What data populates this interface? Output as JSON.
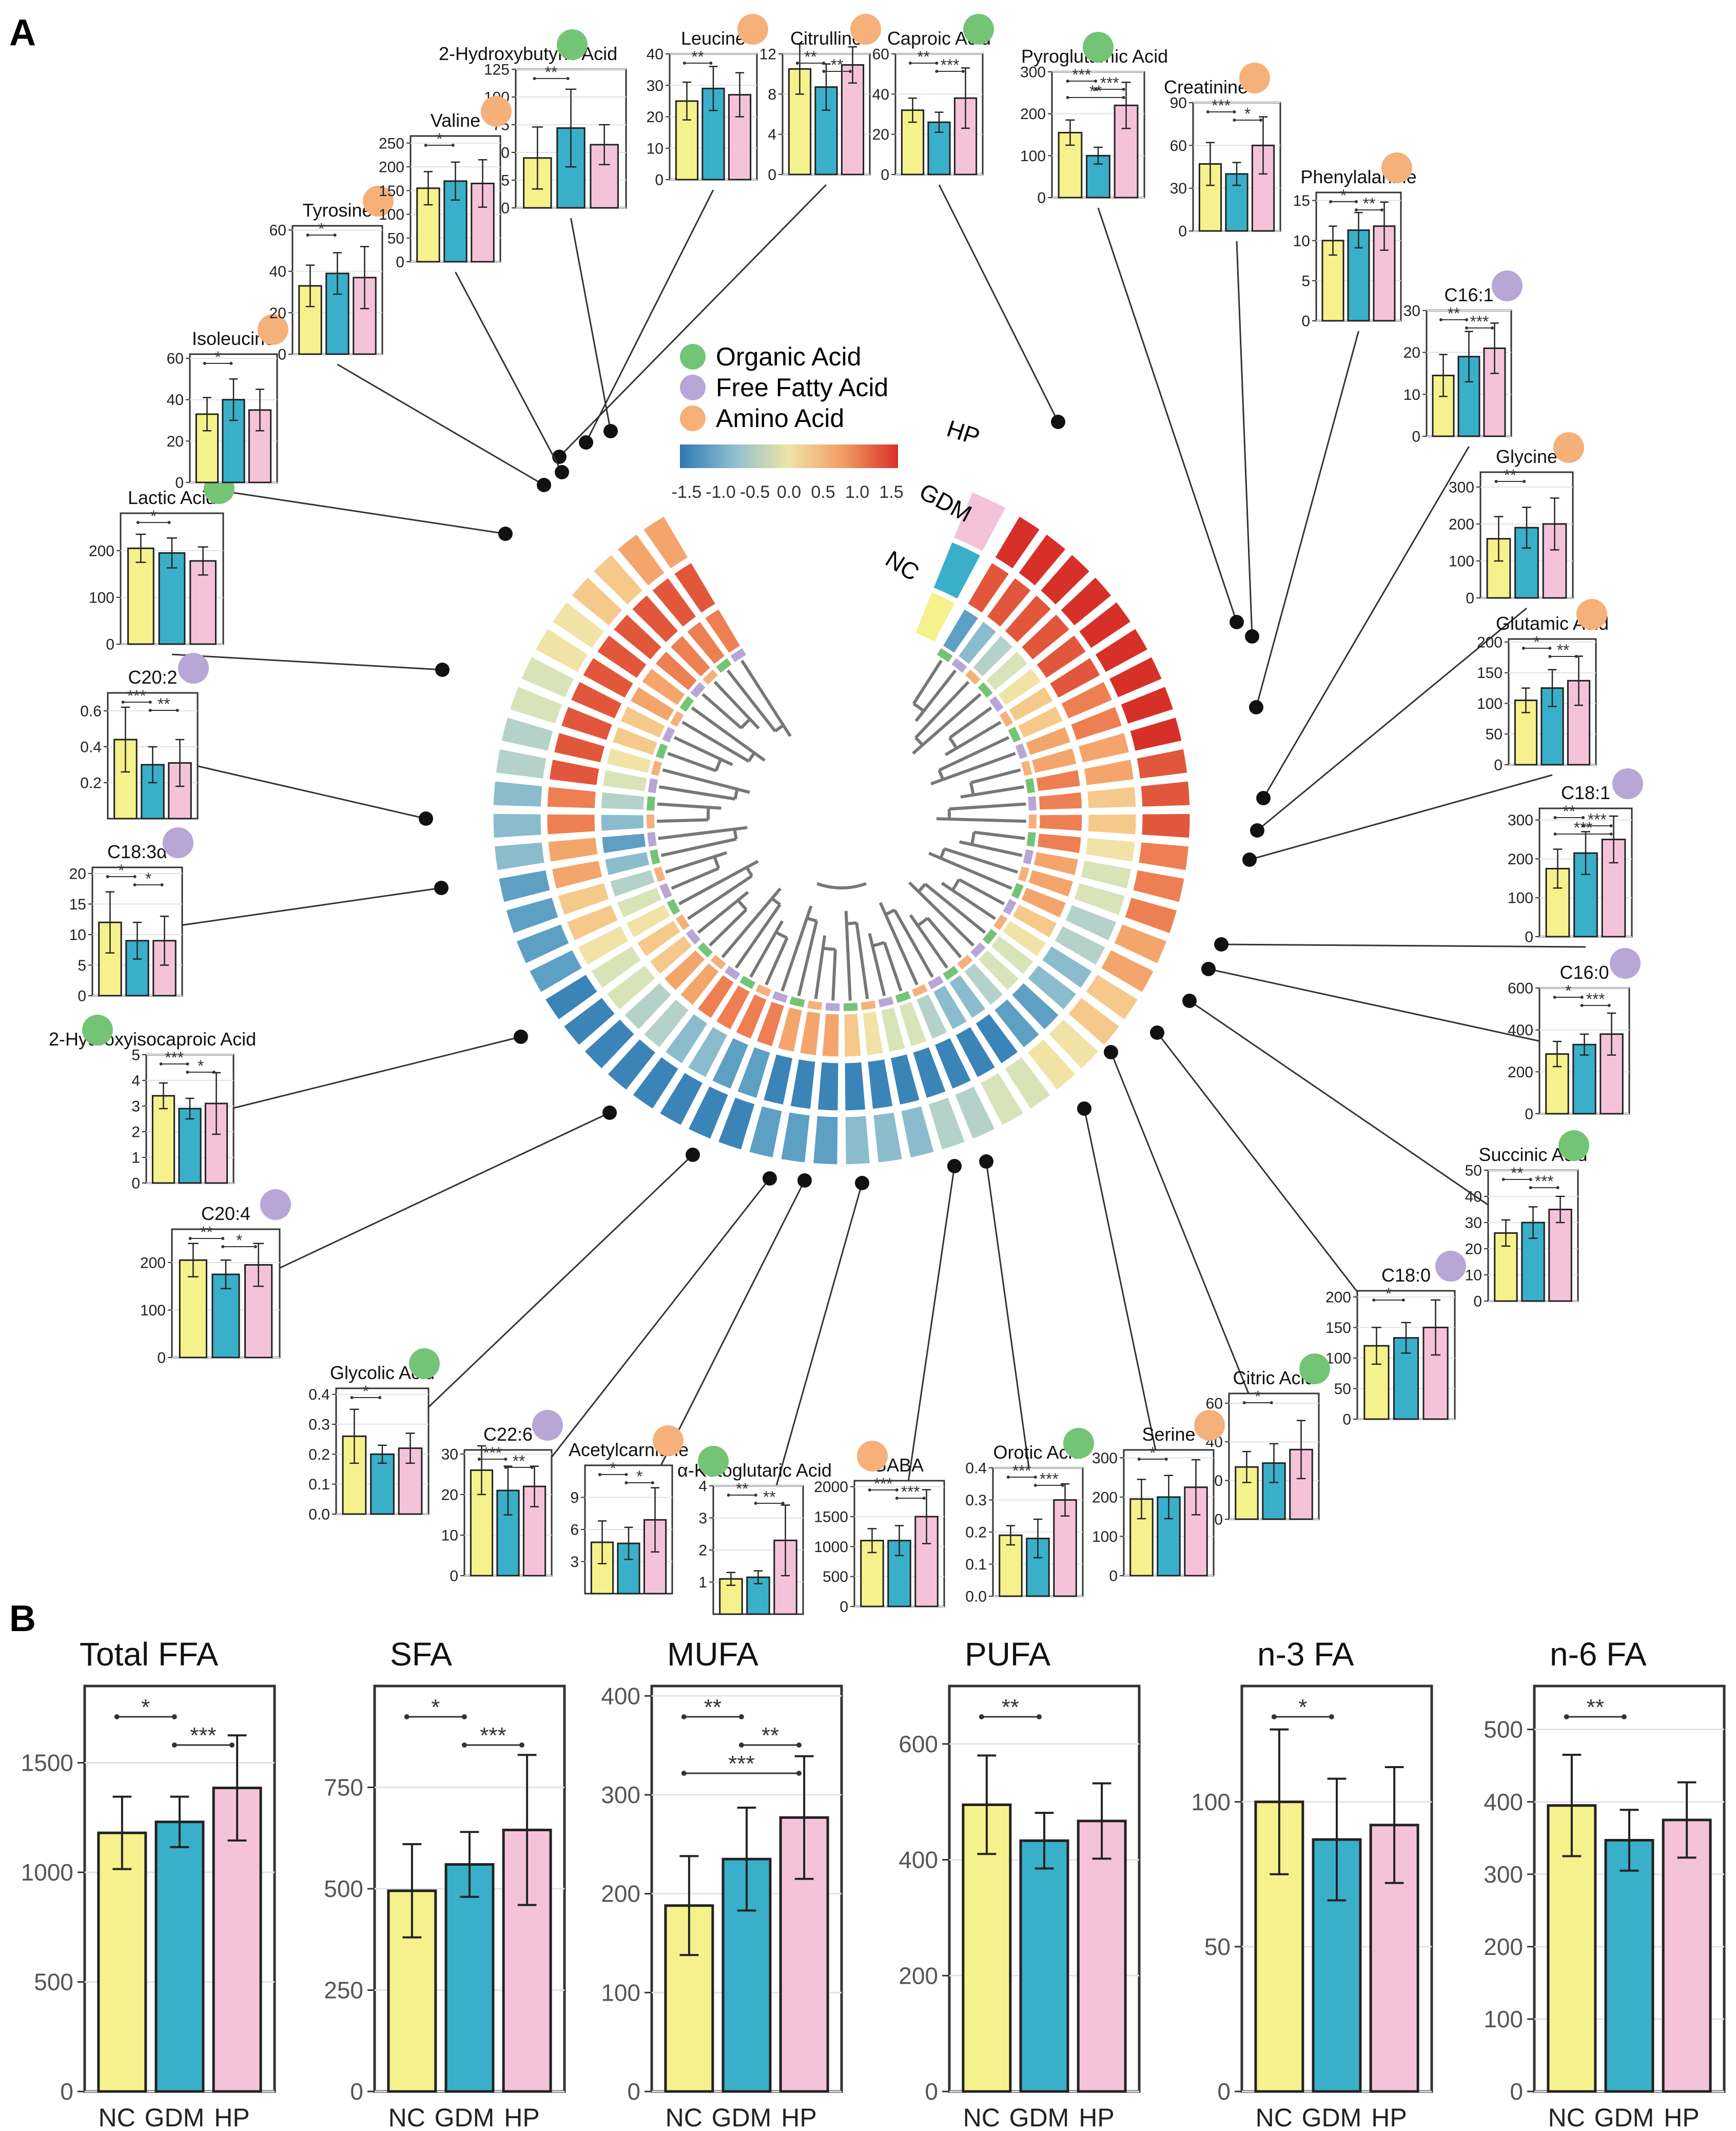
{
  "panel_labels": {
    "a": "A",
    "b": "B"
  },
  "groups": [
    "NC",
    "GDM",
    "HP"
  ],
  "legend": [
    {
      "name": "Organic Acid",
      "color": "#74c476"
    },
    {
      "name": "Free Fatty Acid",
      "color": "#b7a6d6"
    },
    {
      "name": "Amino Acid",
      "color": "#f6b07a"
    }
  ],
  "colorbar": {
    "ticks": [
      "-1.5",
      "-1.0",
      "-0.5",
      "0.0",
      "0.5",
      "1.0",
      "1.5"
    ]
  },
  "ring_labels": {
    "hp": "HP",
    "gdm": "GDM",
    "nc": "NC"
  },
  "colors": {
    "NC": "#f5f18c",
    "GDM": "#3aafc9",
    "HP": "#f5c3d9",
    "organic": "#74c476",
    "ffa": "#b7a6d6",
    "amino": "#f6b07a"
  },
  "chart_data": [
    {
      "type": "bar",
      "title": "2-Hydroxybutyric Acid",
      "class": "organic",
      "categories": [
        "NC",
        "GDM",
        "HP"
      ],
      "values": [
        45,
        72,
        57
      ],
      "errors": [
        28,
        35,
        18
      ],
      "ylim": [
        0,
        125
      ],
      "yticks": [
        "0",
        "25",
        "50",
        "75",
        "100",
        "125"
      ],
      "sig": [
        "**"
      ]
    },
    {
      "type": "bar",
      "title": "Leucine",
      "class": "amino",
      "categories": [
        "NC",
        "GDM",
        "HP"
      ],
      "values": [
        25,
        29,
        27
      ],
      "errors": [
        6,
        7,
        7
      ],
      "ylim": [
        0,
        40
      ],
      "yticks": [
        "0",
        "10",
        "20",
        "30",
        "40"
      ],
      "sig": [
        "**"
      ]
    },
    {
      "type": "bar",
      "title": "Citrulline",
      "class": "amino",
      "categories": [
        "NC",
        "GDM",
        "HP"
      ],
      "values": [
        10.5,
        8.7,
        10.9
      ],
      "errors": [
        2.5,
        2.3,
        1.8
      ],
      "ylim": [
        0,
        12
      ],
      "yticks": [
        "0",
        "4",
        "8",
        "12"
      ],
      "sig": [
        "**",
        "**"
      ]
    },
    {
      "type": "bar",
      "title": "Caproic Acid",
      "class": "organic",
      "categories": [
        "NC",
        "GDM",
        "HP"
      ],
      "values": [
        32,
        26,
        38
      ],
      "errors": [
        6,
        5,
        15
      ],
      "ylim": [
        0,
        60
      ],
      "yticks": [
        "0",
        "20",
        "40",
        "60"
      ],
      "sig": [
        "**",
        "***"
      ]
    },
    {
      "type": "bar",
      "title": "Pyroglutamic Acid",
      "class": "organic",
      "categories": [
        "NC",
        "GDM",
        "HP"
      ],
      "values": [
        155,
        100,
        220
      ],
      "errors": [
        30,
        20,
        55
      ],
      "ylim": [
        0,
        300
      ],
      "yticks": [
        "0",
        "100",
        "200",
        "300"
      ],
      "sig": [
        "***",
        "***",
        "**"
      ]
    },
    {
      "type": "bar",
      "title": "Creatinine",
      "class": "amino",
      "categories": [
        "NC",
        "GDM",
        "HP"
      ],
      "values": [
        47,
        40,
        60
      ],
      "errors": [
        15,
        8,
        20
      ],
      "ylim": [
        0,
        90
      ],
      "yticks": [
        "0",
        "30",
        "60",
        "90"
      ],
      "sig": [
        "***",
        "*"
      ]
    },
    {
      "type": "bar",
      "title": "Phenylalanine",
      "class": "amino",
      "categories": [
        "NC",
        "GDM",
        "HP"
      ],
      "values": [
        10,
        11.3,
        11.8
      ],
      "errors": [
        1.8,
        2.2,
        3
      ],
      "ylim": [
        0,
        16
      ],
      "yticks": [
        "0",
        "5",
        "10",
        "15"
      ],
      "sig": [
        "*",
        "**"
      ]
    },
    {
      "type": "bar",
      "title": "C16:1",
      "class": "ffa",
      "categories": [
        "NC",
        "GDM",
        "HP"
      ],
      "values": [
        14.5,
        19,
        21
      ],
      "errors": [
        5,
        6,
        6
      ],
      "ylim": [
        0,
        30
      ],
      "yticks": [
        "0",
        "10",
        "20",
        "30"
      ],
      "sig": [
        "**",
        "***"
      ]
    },
    {
      "type": "bar",
      "title": "Glycine",
      "class": "amino",
      "categories": [
        "NC",
        "GDM",
        "HP"
      ],
      "values": [
        160,
        190,
        200
      ],
      "errors": [
        60,
        55,
        70
      ],
      "ylim": [
        0,
        340
      ],
      "yticks": [
        "0",
        "100",
        "200",
        "300"
      ],
      "sig": [
        "**"
      ]
    },
    {
      "type": "bar",
      "title": "Glutamic Acid",
      "class": "amino",
      "categories": [
        "NC",
        "GDM",
        "HP"
      ],
      "values": [
        105,
        125,
        137
      ],
      "errors": [
        20,
        30,
        40
      ],
      "ylim": [
        0,
        205
      ],
      "yticks": [
        "0",
        "50",
        "100",
        "150",
        "200"
      ],
      "sig": [
        "*",
        "**"
      ]
    },
    {
      "type": "bar",
      "title": "C18:1",
      "class": "ffa",
      "categories": [
        "NC",
        "GDM",
        "HP"
      ],
      "values": [
        175,
        215,
        250
      ],
      "errors": [
        50,
        55,
        60
      ],
      "ylim": [
        0,
        330
      ],
      "yticks": [
        "0",
        "100",
        "200",
        "300"
      ],
      "sig": [
        "**",
        "***",
        "***"
      ]
    },
    {
      "type": "bar",
      "title": "C16:0",
      "class": "ffa",
      "categories": [
        "NC",
        "GDM",
        "HP"
      ],
      "values": [
        285,
        330,
        380
      ],
      "errors": [
        60,
        50,
        100
      ],
      "ylim": [
        0,
        600
      ],
      "yticks": [
        "0",
        "200",
        "400",
        "600"
      ],
      "sig": [
        "*",
        "***"
      ]
    },
    {
      "type": "bar",
      "title": "Succinic Acid",
      "class": "organic",
      "categories": [
        "NC",
        "GDM",
        "HP"
      ],
      "values": [
        26,
        30,
        35
      ],
      "errors": [
        5,
        6,
        5
      ],
      "ylim": [
        0,
        50
      ],
      "yticks": [
        "0",
        "10",
        "20",
        "30",
        "40",
        "50"
      ],
      "sig": [
        "**",
        "***"
      ]
    },
    {
      "type": "bar",
      "title": "C18:0",
      "class": "ffa",
      "categories": [
        "NC",
        "GDM",
        "HP"
      ],
      "values": [
        120,
        133,
        150
      ],
      "errors": [
        30,
        25,
        45
      ],
      "ylim": [
        0,
        210
      ],
      "yticks": [
        "0",
        "50",
        "100",
        "150",
        "200"
      ],
      "sig": [
        "*"
      ]
    },
    {
      "type": "bar",
      "title": "Citric Acid",
      "class": "organic",
      "categories": [
        "NC",
        "GDM",
        "HP"
      ],
      "values": [
        27,
        29,
        36
      ],
      "errors": [
        8,
        10,
        15
      ],
      "ylim": [
        0,
        65
      ],
      "yticks": [
        "0",
        "20",
        "40",
        "60"
      ],
      "sig": [
        "*"
      ]
    },
    {
      "type": "bar",
      "title": "Serine",
      "class": "amino",
      "categories": [
        "NC",
        "GDM",
        "HP"
      ],
      "values": [
        195,
        200,
        225
      ],
      "errors": [
        50,
        55,
        70
      ],
      "ylim": [
        0,
        320
      ],
      "yticks": [
        "0",
        "100",
        "200",
        "300"
      ],
      "sig": [
        "*"
      ]
    },
    {
      "type": "bar",
      "title": "Orotic Acid",
      "class": "organic",
      "categories": [
        "NC",
        "GDM",
        "HP"
      ],
      "values": [
        0.19,
        0.18,
        0.3
      ],
      "errors": [
        0.03,
        0.06,
        0.05
      ],
      "ylim": [
        0,
        0.4
      ],
      "yticks": [
        "0.0",
        "0.1",
        "0.2",
        "0.3",
        "0.4"
      ],
      "sig": [
        "***",
        "***"
      ]
    },
    {
      "type": "bar",
      "title": "GABA",
      "class": "amino",
      "categories": [
        "NC",
        "GDM",
        "HP"
      ],
      "values": [
        1100,
        1100,
        1500
      ],
      "errors": [
        200,
        250,
        450
      ],
      "ylim": [
        0,
        2100
      ],
      "yticks": [
        "0",
        "500",
        "1000",
        "1500",
        "2000"
      ],
      "sig": [
        "***",
        "***"
      ]
    },
    {
      "type": "bar",
      "title": "α-Ketoglutaric Acid",
      "class": "organic",
      "categories": [
        "NC",
        "GDM",
        "HP"
      ],
      "values": [
        1.1,
        1.15,
        2.3
      ],
      "errors": [
        0.2,
        0.2,
        1.1
      ],
      "ylim": [
        0,
        4
      ],
      "yticks": [
        "1",
        "2",
        "3",
        "4"
      ],
      "sig": [
        "**",
        "**"
      ]
    },
    {
      "type": "bar",
      "title": "Acetylcarnitine",
      "class": "amino",
      "categories": [
        "NC",
        "GDM",
        "HP"
      ],
      "values": [
        4.8,
        4.7,
        6.9
      ],
      "errors": [
        2,
        1.5,
        3
      ],
      "ylim": [
        0,
        12
      ],
      "yticks": [
        "3",
        "6",
        "9"
      ],
      "sig": [
        "*",
        "*"
      ]
    },
    {
      "type": "bar",
      "title": "C22:6",
      "class": "ffa",
      "categories": [
        "NC",
        "GDM",
        "HP"
      ],
      "values": [
        26,
        21,
        22
      ],
      "errors": [
        6,
        6,
        5
      ],
      "ylim": [
        0,
        31
      ],
      "yticks": [
        "0",
        "10",
        "20",
        "30"
      ],
      "sig": [
        "***",
        "**"
      ]
    },
    {
      "type": "bar",
      "title": "Glycolic Acid",
      "class": "organic",
      "categories": [
        "NC",
        "GDM",
        "HP"
      ],
      "values": [
        0.26,
        0.2,
        0.22
      ],
      "errors": [
        0.09,
        0.03,
        0.05
      ],
      "ylim": [
        0,
        0.42
      ],
      "yticks": [
        "0.0",
        "0.1",
        "0.2",
        "0.3",
        "0.4"
      ],
      "sig": [
        "*"
      ]
    },
    {
      "type": "bar",
      "title": "C20:4",
      "class": "ffa",
      "categories": [
        "NC",
        "GDM",
        "HP"
      ],
      "values": [
        205,
        175,
        195
      ],
      "errors": [
        35,
        30,
        45
      ],
      "ylim": [
        0,
        270
      ],
      "yticks": [
        "0",
        "100",
        "200"
      ],
      "sig": [
        "**",
        "*"
      ]
    },
    {
      "type": "bar",
      "title": "2-Hydroxyisocaproic Acid",
      "class": "organic",
      "categories": [
        "NC",
        "GDM",
        "HP"
      ],
      "values": [
        3.4,
        2.9,
        3.1
      ],
      "errors": [
        0.5,
        0.4,
        1.2
      ],
      "ylim": [
        0,
        5
      ],
      "yticks": [
        "0",
        "1",
        "2",
        "3",
        "4",
        "5"
      ],
      "sig": [
        "***",
        "*"
      ]
    },
    {
      "type": "bar",
      "title": "C18:3α",
      "class": "ffa",
      "categories": [
        "NC",
        "GDM",
        "HP"
      ],
      "values": [
        12,
        9,
        9
      ],
      "errors": [
        5,
        3,
        4
      ],
      "ylim": [
        0,
        21
      ],
      "yticks": [
        "0",
        "5",
        "10",
        "15",
        "20"
      ],
      "sig": [
        "*",
        "*"
      ]
    },
    {
      "type": "bar",
      "title": "C20:2",
      "class": "ffa",
      "categories": [
        "NC",
        "GDM",
        "HP"
      ],
      "values": [
        0.44,
        0.3,
        0.31
      ],
      "errors": [
        0.18,
        0.1,
        0.13
      ],
      "ylim": [
        0,
        0.7
      ],
      "yticks": [
        "0.2",
        "0.4",
        "0.6"
      ],
      "sig": [
        "***",
        "**"
      ]
    },
    {
      "type": "bar",
      "title": "Lactic Acid",
      "class": "organic",
      "categories": [
        "NC",
        "GDM",
        "HP"
      ],
      "values": [
        205,
        195,
        178
      ],
      "errors": [
        30,
        32,
        30
      ],
      "ylim": [
        0,
        280
      ],
      "yticks": [
        "0",
        "100",
        "200"
      ],
      "sig": [
        "*"
      ]
    },
    {
      "type": "bar",
      "title": "Isoleucine",
      "class": "amino",
      "categories": [
        "NC",
        "GDM",
        "HP"
      ],
      "values": [
        33,
        40,
        35
      ],
      "errors": [
        8,
        10,
        10
      ],
      "ylim": [
        0,
        62
      ],
      "yticks": [
        "0",
        "20",
        "40",
        "60"
      ],
      "sig": [
        "*"
      ]
    },
    {
      "type": "bar",
      "title": "Tyrosine",
      "class": "amino",
      "categories": [
        "NC",
        "GDM",
        "HP"
      ],
      "values": [
        33,
        39,
        37
      ],
      "errors": [
        10,
        10,
        15
      ],
      "ylim": [
        0,
        62
      ],
      "yticks": [
        "0",
        "20",
        "40",
        "60"
      ],
      "sig": [
        "*"
      ]
    },
    {
      "type": "bar",
      "title": "Valine",
      "class": "amino",
      "categories": [
        "NC",
        "GDM",
        "HP"
      ],
      "values": [
        155,
        170,
        165
      ],
      "errors": [
        35,
        40,
        50
      ],
      "ylim": [
        0,
        265
      ],
      "yticks": [
        "0",
        "50",
        "100",
        "150",
        "200",
        "250"
      ],
      "sig": [
        "*"
      ]
    },
    {
      "type": "bar",
      "title": "Total FFA",
      "categories": [
        "NC",
        "GDM",
        "HP"
      ],
      "values": [
        1180,
        1230,
        1385
      ],
      "errors": [
        165,
        115,
        240
      ],
      "ylim": [
        0,
        1850
      ],
      "yticks": [
        "0",
        "500",
        "1000",
        "1500"
      ],
      "sig": [
        "*",
        "***"
      ]
    },
    {
      "type": "bar",
      "title": "SFA",
      "categories": [
        "NC",
        "GDM",
        "HP"
      ],
      "values": [
        495,
        560,
        645
      ],
      "errors": [
        115,
        80,
        185
      ],
      "ylim": [
        0,
        1000
      ],
      "yticks": [
        "0",
        "250",
        "500",
        "750"
      ],
      "sig": [
        "*",
        "***"
      ]
    },
    {
      "type": "bar",
      "title": "MUFA",
      "categories": [
        "NC",
        "GDM",
        "HP"
      ],
      "values": [
        188,
        235,
        277
      ],
      "errors": [
        50,
        52,
        62
      ],
      "ylim": [
        0,
        410
      ],
      "yticks": [
        "0",
        "100",
        "200",
        "300",
        "400"
      ],
      "sig": [
        "**",
        "**",
        "***"
      ]
    },
    {
      "type": "bar",
      "title": "PUFA",
      "categories": [
        "NC",
        "GDM",
        "HP"
      ],
      "values": [
        495,
        433,
        467
      ],
      "errors": [
        85,
        48,
        65
      ],
      "ylim": [
        0,
        700
      ],
      "yticks": [
        "0",
        "200",
        "400",
        "600"
      ],
      "sig": [
        "**"
      ]
    },
    {
      "type": "bar",
      "title": "n-3 FA",
      "categories": [
        "NC",
        "GDM",
        "HP"
      ],
      "values": [
        100,
        87,
        92
      ],
      "errors": [
        25,
        21,
        20
      ],
      "ylim": [
        0,
        140
      ],
      "yticks": [
        "0",
        "50",
        "100"
      ],
      "sig": [
        "*"
      ]
    },
    {
      "type": "bar",
      "title": "n-6 FA",
      "categories": [
        "NC",
        "GDM",
        "HP"
      ],
      "values": [
        395,
        347,
        375
      ],
      "errors": [
        70,
        42,
        52
      ],
      "ylim": [
        0,
        560
      ],
      "yticks": [
        "0",
        "100",
        "200",
        "300",
        "400",
        "500"
      ],
      "sig": [
        "**"
      ]
    }
  ]
}
